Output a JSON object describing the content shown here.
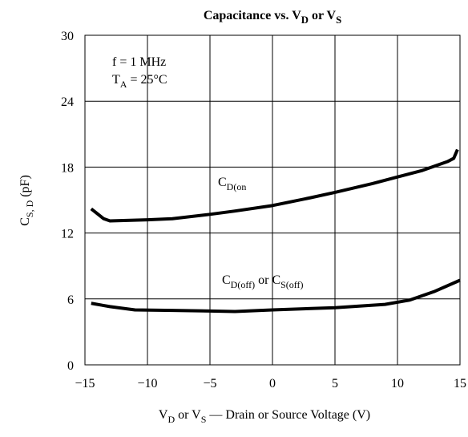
{
  "chart_data": {
    "type": "line",
    "title": [
      "Capacitance vs. V",
      "D",
      " or V",
      "S"
    ],
    "xlabel": [
      "V",
      "D",
      " or V",
      "S",
      " — Drain or Source Voltage (V)"
    ],
    "ylabel": [
      "C",
      "S, D",
      "  (pF)"
    ],
    "annotations": [
      [
        "f = 1 MHz"
      ],
      [
        "T",
        "A",
        " = 25°C"
      ]
    ],
    "xlim": [
      -15,
      15
    ],
    "ylim": [
      0,
      30
    ],
    "xticks": [
      {
        "value": -15,
        "label": "−15"
      },
      {
        "value": -10,
        "label": "−10"
      },
      {
        "value": -5,
        "label": "−5"
      },
      0,
      5,
      10,
      15
    ],
    "yticks": [
      0,
      6,
      12,
      18,
      24,
      30
    ],
    "grid": true,
    "series": [
      {
        "name": [
          "C",
          "D(on"
        ],
        "color": "#000000",
        "x": [
          -14.5,
          -13.5,
          -13,
          -10,
          -8,
          -5,
          -3,
          0,
          3,
          5,
          8,
          10,
          12,
          14,
          14.5,
          14.8
        ],
        "values": [
          14.2,
          13.3,
          13.1,
          13.2,
          13.3,
          13.7,
          14.0,
          14.5,
          15.2,
          15.7,
          16.5,
          17.1,
          17.7,
          18.5,
          18.8,
          19.6
        ]
      },
      {
        "name": [
          "C",
          "D(off)",
          " or C",
          "S(off)"
        ],
        "color": "#000000",
        "x": [
          -14.5,
          -13,
          -11,
          -8,
          -5,
          -3,
          0,
          5,
          9,
          11,
          13,
          15
        ],
        "values": [
          5.6,
          5.3,
          5.0,
          4.95,
          4.9,
          4.85,
          5.0,
          5.2,
          5.5,
          5.9,
          6.7,
          7.7
        ]
      }
    ]
  }
}
